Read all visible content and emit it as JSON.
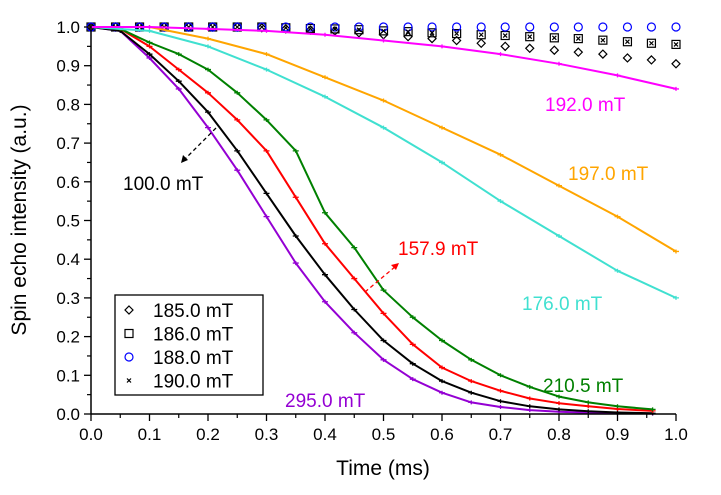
{
  "chart_data": {
    "type": "line",
    "xlabel": "Time (ms)",
    "ylabel": "Spin echo intensity (a.u.)",
    "xlim": [
      0,
      1.0
    ],
    "ylim": [
      0,
      1.0
    ],
    "xticks": [
      "0.0",
      "0.1",
      "0.2",
      "0.3",
      "0.4",
      "0.5",
      "0.6",
      "0.7",
      "0.8",
      "0.9",
      "1.0"
    ],
    "yticks": [
      "0.0",
      "0.1",
      "0.2",
      "0.3",
      "0.4",
      "0.5",
      "0.6",
      "0.7",
      "0.8",
      "0.9",
      "1.0"
    ],
    "grid": false,
    "legend_position": "bottom-left",
    "line_series": [
      {
        "name": "295.0 mT",
        "color": "#9400d3",
        "x": [
          0,
          0.05,
          0.1,
          0.15,
          0.2,
          0.25,
          0.3,
          0.35,
          0.4,
          0.45,
          0.5,
          0.55,
          0.6,
          0.65,
          0.7,
          0.75,
          0.8,
          0.85,
          0.9,
          0.96
        ],
        "y": [
          1,
          0.99,
          0.92,
          0.84,
          0.74,
          0.63,
          0.51,
          0.39,
          0.29,
          0.21,
          0.14,
          0.09,
          0.055,
          0.03,
          0.018,
          0.01,
          0.006,
          0.003,
          0.002,
          0.001
        ]
      },
      {
        "name": "100.0 mT",
        "color": "#000000",
        "x": [
          0,
          0.05,
          0.1,
          0.15,
          0.2,
          0.25,
          0.3,
          0.35,
          0.4,
          0.45,
          0.5,
          0.55,
          0.6,
          0.65,
          0.7,
          0.75,
          0.8,
          0.85,
          0.9,
          0.96
        ],
        "y": [
          1,
          0.99,
          0.93,
          0.86,
          0.78,
          0.68,
          0.57,
          0.46,
          0.36,
          0.27,
          0.19,
          0.13,
          0.085,
          0.055,
          0.033,
          0.02,
          0.012,
          0.007,
          0.004,
          0.002
        ]
      },
      {
        "name": "157.9 mT",
        "color": "#ff0000",
        "x": [
          0,
          0.05,
          0.1,
          0.15,
          0.2,
          0.25,
          0.3,
          0.35,
          0.4,
          0.45,
          0.5,
          0.55,
          0.6,
          0.65,
          0.7,
          0.75,
          0.8,
          0.85,
          0.9,
          0.96
        ],
        "y": [
          1,
          0.995,
          0.95,
          0.89,
          0.83,
          0.76,
          0.68,
          0.56,
          0.44,
          0.35,
          0.26,
          0.18,
          0.12,
          0.085,
          0.06,
          0.04,
          0.028,
          0.02,
          0.013,
          0.008
        ]
      },
      {
        "name": "210.5 mT",
        "color": "#008000",
        "x": [
          0,
          0.05,
          0.1,
          0.15,
          0.2,
          0.25,
          0.3,
          0.35,
          0.4,
          0.45,
          0.5,
          0.55,
          0.6,
          0.65,
          0.7,
          0.75,
          0.8,
          0.85,
          0.9,
          0.96
        ],
        "y": [
          1,
          0.995,
          0.96,
          0.93,
          0.89,
          0.83,
          0.76,
          0.68,
          0.52,
          0.43,
          0.32,
          0.25,
          0.19,
          0.14,
          0.1,
          0.07,
          0.045,
          0.03,
          0.02,
          0.012
        ]
      },
      {
        "name": "176.0 mT",
        "color": "#40e0d0",
        "x": [
          0,
          0.1,
          0.2,
          0.3,
          0.4,
          0.5,
          0.6,
          0.7,
          0.8,
          0.9,
          1.0
        ],
        "y": [
          1,
          0.99,
          0.95,
          0.89,
          0.82,
          0.74,
          0.65,
          0.55,
          0.46,
          0.37,
          0.3
        ]
      },
      {
        "name": "197.0 mT",
        "color": "#ffa500",
        "x": [
          0,
          0.1,
          0.2,
          0.3,
          0.4,
          0.5,
          0.6,
          0.7,
          0.8,
          0.9,
          1.0
        ],
        "y": [
          1,
          1,
          0.97,
          0.93,
          0.87,
          0.81,
          0.74,
          0.67,
          0.59,
          0.51,
          0.42
        ]
      },
      {
        "name": "192.0 mT",
        "color": "#ff00ff",
        "x": [
          0,
          0.1,
          0.2,
          0.3,
          0.4,
          0.5,
          0.6,
          0.7,
          0.8,
          0.9,
          1.0
        ],
        "y": [
          1,
          1,
          0.995,
          0.99,
          0.98,
          0.965,
          0.95,
          0.93,
          0.905,
          0.875,
          0.84
        ]
      }
    ],
    "scatter_x": [
      0,
      0.042,
      0.083,
      0.125,
      0.167,
      0.208,
      0.25,
      0.292,
      0.333,
      0.375,
      0.417,
      0.458,
      0.5,
      0.542,
      0.583,
      0.625,
      0.667,
      0.708,
      0.75,
      0.792,
      0.833,
      0.875,
      0.917,
      0.958,
      1.0
    ],
    "scatter_series": [
      {
        "name": "185.0 mT",
        "marker": "diamond",
        "color": "#000000",
        "y": [
          1,
          1,
          1,
          1,
          1,
          1,
          1,
          0.998,
          0.995,
          0.992,
          0.99,
          0.985,
          0.98,
          0.975,
          0.97,
          0.965,
          0.958,
          0.95,
          0.945,
          0.94,
          0.935,
          0.93,
          0.92,
          0.915,
          0.905
        ]
      },
      {
        "name": "186.0 mT",
        "marker": "square",
        "color": "#000000",
        "y": [
          1,
          1,
          1,
          1,
          1,
          1,
          1,
          1,
          0.998,
          0.996,
          0.995,
          0.993,
          0.99,
          0.988,
          0.985,
          0.983,
          0.98,
          0.978,
          0.975,
          0.972,
          0.97,
          0.966,
          0.962,
          0.958,
          0.955
        ]
      },
      {
        "name": "188.0 mT",
        "marker": "circle",
        "color": "#0000ff",
        "y": [
          1,
          1,
          1,
          1,
          1,
          1,
          1,
          1,
          1,
          1,
          1,
          1,
          1,
          1,
          1,
          1,
          1,
          1,
          1,
          1,
          1,
          1,
          1,
          1,
          1
        ]
      },
      {
        "name": "190.0 mT",
        "marker": "x",
        "color": "#000000",
        "y": [
          1,
          1,
          1,
          1,
          1,
          1,
          1,
          1,
          0.998,
          0.996,
          0.995,
          0.993,
          0.99,
          0.988,
          0.985,
          0.983,
          0.98,
          0.978,
          0.975,
          0.972,
          0.97,
          0.966,
          0.962,
          0.958,
          0.955
        ]
      }
    ],
    "annotations": [
      {
        "text": "192.0 mT",
        "color": "#ff00ff"
      },
      {
        "text": "197.0 mT",
        "color": "#ffa500"
      },
      {
        "text": "100.0 mT",
        "color": "#000000",
        "arrow": "dashed"
      },
      {
        "text": "157.9 mT",
        "color": "#ff0000",
        "arrow": "dashed"
      },
      {
        "text": "176.0 mT",
        "color": "#40e0d0"
      },
      {
        "text": "210.5 mT",
        "color": "#008000"
      },
      {
        "text": "295.0 mT",
        "color": "#9400d3"
      }
    ]
  }
}
